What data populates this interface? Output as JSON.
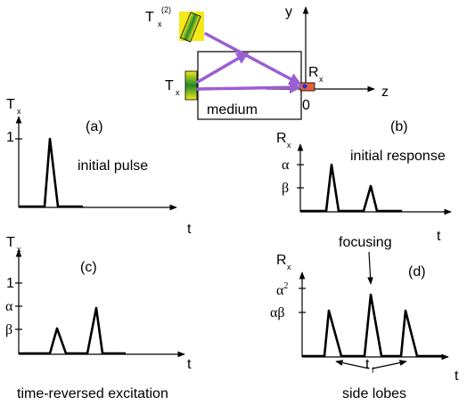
{
  "setup": {
    "tx_label": "T",
    "tx_sub": "x",
    "tx2_label": "T",
    "tx2_sub": "x",
    "tx2_sup": "(2)",
    "rx_label": "R",
    "rx_sub": "x",
    "medium_label": "medium",
    "axis_y": "y",
    "axis_z": "z",
    "origin": "0",
    "colors": {
      "ray": "#9a5fd0",
      "transducer": "#f4e81a",
      "gradient": "#1f8a2a",
      "receiver": "#e2623a",
      "receiver_dot": "#1c2fd6"
    }
  },
  "panel_a": {
    "tag": "(a)",
    "ylabel": "T",
    "ysub": "x",
    "xlabel": "t",
    "caption": "initial pulse",
    "tick_1": "1"
  },
  "panel_b": {
    "tag": "(b)",
    "ylabel": "R",
    "ysub": "x",
    "xlabel": "t",
    "caption": "initial response",
    "tick_alpha": "α",
    "tick_beta": "β"
  },
  "panel_c": {
    "tag": "(c)",
    "ylabel": "T",
    "ysub": "x",
    "xlabel": "t",
    "caption": "time-reversed excitation",
    "tick_1": "1",
    "tick_alpha": "α",
    "tick_beta": "β"
  },
  "panel_d": {
    "tag": "(d)",
    "ylabel": "R",
    "ysub": "x",
    "xlabel": "t",
    "focus_label": "focusing",
    "side_label": "side lobes",
    "tf_label": "t",
    "tf_sub": "f",
    "tick_a2": "α",
    "tick_a2_sup": "2",
    "tick_ab": "αβ"
  }
}
